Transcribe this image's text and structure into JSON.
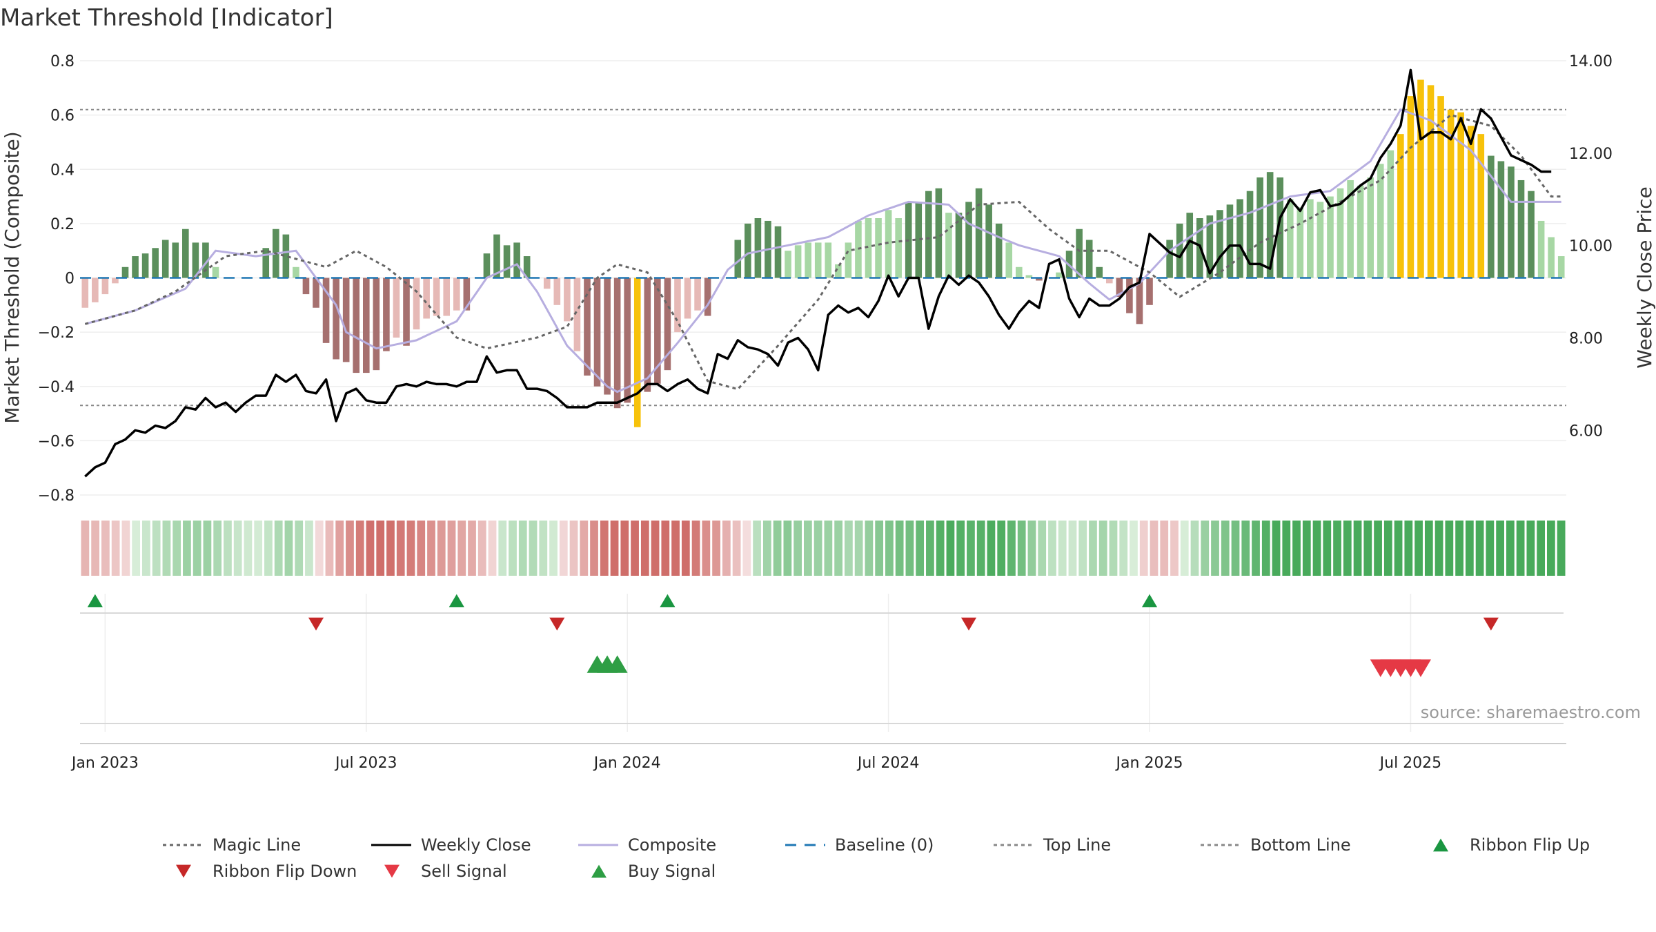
{
  "chart_data": {
    "type": "bar",
    "title": "Market Threshold [Indicator]",
    "ylabel": "Market Threshold (Composite)",
    "y2label": "Weekly Close Price",
    "ylim": [
      -0.8,
      0.8
    ],
    "y2lim": [
      4.6,
      14.0
    ],
    "yticks": [
      0.8,
      0.6,
      0.4,
      0.2,
      0,
      -0.2,
      -0.4,
      -0.6,
      -0.8
    ],
    "ytick_labels": [
      "0.8",
      "0.6",
      "0.4",
      "0.2",
      "0",
      "−0.2",
      "−0.4",
      "−0.6",
      "−0.8"
    ],
    "y2ticks": [
      14,
      12,
      10,
      8,
      6
    ],
    "y2tick_labels": [
      "14.00",
      "12.00",
      "10.00",
      "8.00",
      "6.00"
    ],
    "xticks": [
      {
        "week": 2,
        "label": "Jan 2023"
      },
      {
        "week": 28,
        "label": "Jul 2023"
      },
      {
        "week": 54,
        "label": "Jan 2024"
      },
      {
        "week": 80,
        "label": "Jul 2024"
      },
      {
        "week": 106,
        "label": "Jan 2025"
      },
      {
        "week": 132,
        "label": "Jul 2025"
      }
    ],
    "top_line": 0.62,
    "bottom_line": -0.47,
    "composite_keys": [
      [
        0,
        -0.17
      ],
      [
        5,
        -0.12
      ],
      [
        10,
        -0.04
      ],
      [
        13,
        0.1
      ],
      [
        17,
        0.08
      ],
      [
        21,
        0.1
      ],
      [
        25,
        -0.1
      ],
      [
        26,
        -0.2
      ],
      [
        29,
        -0.26
      ],
      [
        33,
        -0.23
      ],
      [
        37,
        -0.16
      ],
      [
        40,
        0.0
      ],
      [
        43,
        0.05
      ],
      [
        45,
        -0.05
      ],
      [
        48,
        -0.25
      ],
      [
        52,
        -0.4
      ],
      [
        53,
        -0.42
      ],
      [
        56,
        -0.37
      ],
      [
        59,
        -0.24
      ],
      [
        62,
        -0.1
      ],
      [
        64,
        0.03
      ],
      [
        66,
        0.09
      ],
      [
        70,
        0.12
      ],
      [
        74,
        0.15
      ],
      [
        78,
        0.23
      ],
      [
        82,
        0.28
      ],
      [
        86,
        0.27
      ],
      [
        88,
        0.2
      ],
      [
        91,
        0.15
      ],
      [
        93,
        0.12
      ],
      [
        97,
        0.08
      ],
      [
        100,
        -0.02
      ],
      [
        102,
        -0.08
      ],
      [
        105,
        -0.02
      ],
      [
        108,
        0.1
      ],
      [
        112,
        0.2
      ],
      [
        116,
        0.24
      ],
      [
        120,
        0.3
      ],
      [
        124,
        0.32
      ],
      [
        128,
        0.43
      ],
      [
        131,
        0.62
      ],
      [
        134,
        0.58
      ],
      [
        138,
        0.47
      ],
      [
        142,
        0.28
      ]
    ],
    "composite_values": [
      -0.11,
      -0.09,
      -0.06,
      -0.02,
      0.04,
      0.08,
      0.09,
      0.11,
      0.14,
      0.13,
      0.18,
      0.13,
      0.13,
      0.04,
      0.0,
      0.0,
      0.0,
      0.0,
      0.11,
      0.18,
      0.16,
      0.04,
      -0.06,
      -0.11,
      -0.24,
      -0.3,
      -0.31,
      -0.35,
      -0.35,
      -0.34,
      -0.27,
      -0.22,
      -0.25,
      -0.19,
      -0.15,
      -0.14,
      -0.14,
      -0.12,
      -0.12,
      0.0,
      0.09,
      0.16,
      0.12,
      0.13,
      0.08,
      0.0,
      -0.04,
      -0.1,
      -0.16,
      -0.27,
      -0.36,
      -0.4,
      -0.43,
      -0.48,
      -0.46,
      -0.55,
      -0.42,
      -0.39,
      -0.34,
      -0.2,
      -0.15,
      -0.12,
      -0.14,
      0.0,
      0.0,
      0.14,
      0.2,
      0.22,
      0.21,
      0.19,
      0.1,
      0.12,
      0.13,
      0.13,
      0.13,
      0.05,
      0.13,
      0.21,
      0.22,
      0.22,
      0.25,
      0.22,
      0.28,
      0.28,
      0.32,
      0.33,
      0.24,
      0.24,
      0.28,
      0.33,
      0.27,
      0.2,
      0.13,
      0.04,
      0.01,
      -0.01,
      0.0,
      0.02,
      0.1,
      0.18,
      0.14,
      0.04,
      -0.02,
      -0.07,
      -0.13,
      -0.17,
      -0.1,
      0.0,
      0.14,
      0.2,
      0.24,
      0.22,
      0.23,
      0.25,
      0.27,
      0.29,
      0.32,
      0.37,
      0.39,
      0.37,
      0.29,
      0.26,
      0.29,
      0.28,
      0.3,
      0.33,
      0.36,
      0.34,
      0.37,
      0.42,
      0.47,
      0.53,
      0.67,
      0.73,
      0.71,
      0.67,
      0.62,
      0.61,
      0.56,
      0.53,
      0.45,
      0.43,
      0.41,
      0.36,
      0.32,
      0.21,
      0.15,
      0.08
    ],
    "weekly_close": [
      5.0,
      5.2,
      5.3,
      5.7,
      5.8,
      6.0,
      5.95,
      6.1,
      6.05,
      6.2,
      6.5,
      6.45,
      6.7,
      6.5,
      6.6,
      6.4,
      6.6,
      6.75,
      6.75,
      7.2,
      7.05,
      7.2,
      6.85,
      6.8,
      7.1,
      6.2,
      6.8,
      6.9,
      6.65,
      6.6,
      6.6,
      6.95,
      7.0,
      6.95,
      7.05,
      7.0,
      7.0,
      6.95,
      7.05,
      7.05,
      7.6,
      7.25,
      7.3,
      7.3,
      6.9,
      6.9,
      6.85,
      6.7,
      6.5,
      6.5,
      6.5,
      6.6,
      6.6,
      6.6,
      6.7,
      6.8,
      7.0,
      7.0,
      6.85,
      7.0,
      7.1,
      6.9,
      6.8,
      7.65,
      7.55,
      7.95,
      7.8,
      7.75,
      7.65,
      7.4,
      7.9,
      8.0,
      7.75,
      7.3,
      8.5,
      8.7,
      8.55,
      8.65,
      8.45,
      8.8,
      9.35,
      8.9,
      9.3,
      9.3,
      8.2,
      8.9,
      9.35,
      9.15,
      9.35,
      9.2,
      8.9,
      8.5,
      8.2,
      8.55,
      8.8,
      8.65,
      9.6,
      9.7,
      8.85,
      8.45,
      8.85,
      8.7,
      8.7,
      8.85,
      9.1,
      9.2,
      10.25,
      10.05,
      9.85,
      9.75,
      10.1,
      10.0,
      9.4,
      9.75,
      10.0,
      10.0,
      9.6,
      9.6,
      9.5,
      10.6,
      11.0,
      10.75,
      11.15,
      11.2,
      10.85,
      10.9,
      11.1,
      11.3,
      11.45,
      11.9,
      12.2,
      12.6,
      13.8,
      12.3,
      12.45,
      12.45,
      12.3,
      12.75,
      12.2,
      12.95,
      12.75,
      12.35,
      11.95,
      11.85,
      11.75,
      11.6,
      11.6
    ],
    "magic_line_keys": [
      [
        0,
        -0.17
      ],
      [
        5,
        -0.12
      ],
      [
        9,
        -0.05
      ],
      [
        14,
        0.08
      ],
      [
        18,
        0.1
      ],
      [
        20,
        0.08
      ],
      [
        24,
        0.04
      ],
      [
        27,
        0.1
      ],
      [
        30,
        0.04
      ],
      [
        33,
        -0.05
      ],
      [
        37,
        -0.22
      ],
      [
        40,
        -0.26
      ],
      [
        45,
        -0.22
      ],
      [
        48,
        -0.18
      ],
      [
        51,
        0.0
      ],
      [
        53,
        0.05
      ],
      [
        56,
        0.02
      ],
      [
        59,
        -0.16
      ],
      [
        62,
        -0.38
      ],
      [
        65,
        -0.41
      ],
      [
        69,
        -0.25
      ],
      [
        73,
        -0.08
      ],
      [
        76,
        0.1
      ],
      [
        80,
        0.13
      ],
      [
        85,
        0.15
      ],
      [
        89,
        0.27
      ],
      [
        93,
        0.28
      ],
      [
        96,
        0.18
      ],
      [
        99,
        0.1
      ],
      [
        102,
        0.1
      ],
      [
        106,
        0.02
      ],
      [
        109,
        -0.07
      ],
      [
        113,
        0.02
      ],
      [
        117,
        0.13
      ],
      [
        121,
        0.2
      ],
      [
        125,
        0.28
      ],
      [
        129,
        0.36
      ],
      [
        132,
        0.48
      ],
      [
        136,
        0.6
      ],
      [
        140,
        0.56
      ],
      [
        143,
        0.45
      ],
      [
        146,
        0.3
      ]
    ],
    "magic_line_values": [],
    "ribbon_values": [],
    "ribbon_strips": 146,
    "ribbon_flip_up": [
      1,
      37,
      58,
      106
    ],
    "ribbon_flip_down": [
      23,
      47,
      88,
      140
    ],
    "buy_signal": [
      51,
      52,
      53
    ],
    "sell_signal": [
      129,
      130,
      131,
      132,
      133
    ],
    "legend": [
      {
        "label": "Magic Line",
        "style": "dotted",
        "color": "#666666"
      },
      {
        "label": "Weekly Close",
        "style": "solid",
        "color": "#000000"
      },
      {
        "label": "Composite",
        "style": "solid",
        "color": "#b7aee0"
      },
      {
        "label": "Baseline (0)",
        "style": "dashed",
        "color": "#1f77b4"
      },
      {
        "label": "Top Line",
        "style": "dotted",
        "color": "#888888"
      },
      {
        "label": "Bottom Line",
        "style": "dotted",
        "color": "#888888"
      },
      {
        "label": "Ribbon Flip Up",
        "style": "triangle-up",
        "color": "#1a9641"
      },
      {
        "label": "Ribbon Flip Down",
        "style": "triangle-down",
        "color": "#c62828"
      },
      {
        "label": "Sell Signal",
        "style": "triangle-down",
        "color": "#e53945"
      },
      {
        "label": "Buy Signal",
        "style": "triangle-up",
        "color": "#2e9e44"
      }
    ],
    "colors": {
      "bar_pos_strong": "#5b8f5c",
      "bar_pos_light": "#a7d7a4",
      "bar_neg_strong": "#a6706f",
      "bar_neg_light": "#e6b9b6",
      "bar_extreme": "#f7c20a",
      "composite_line": "#b7aee0",
      "baseline": "#1f77b4",
      "close_line": "#000000",
      "magic_line": "#666666",
      "ribbon_flip_up": "#1a9641",
      "ribbon_flip_down": "#c62828",
      "buy_signal": "#2e9e44",
      "sell_signal": "#e53945"
    }
  },
  "source": "source: sharemaestro.com"
}
